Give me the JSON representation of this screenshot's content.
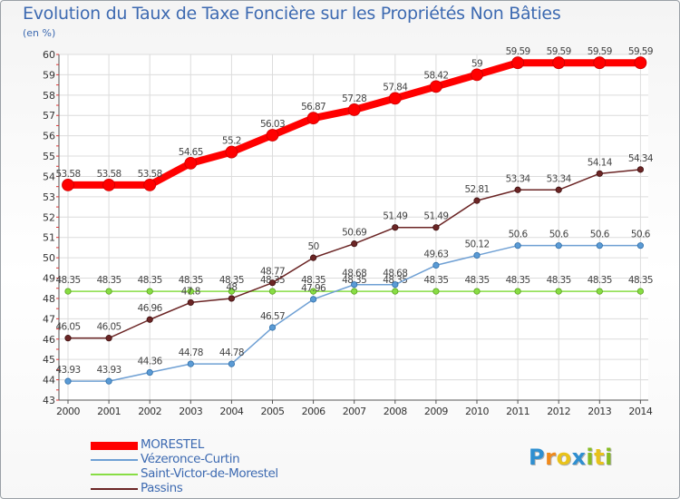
{
  "chart_data": {
    "type": "line",
    "title": "Evolution du Taux de Taxe Foncière sur les Propriétés Non Bâties",
    "ylabel": "(en %)",
    "xlabel": "",
    "ylim": [
      43,
      60
    ],
    "yticks": [
      43,
      44,
      45,
      46,
      47,
      48,
      49,
      50,
      51,
      52,
      53,
      54,
      55,
      56,
      57,
      58,
      59,
      60
    ],
    "categories": [
      "2000",
      "2001",
      "2002",
      "2003",
      "2004",
      "2005",
      "2006",
      "2007",
      "2008",
      "2009",
      "2010",
      "2011",
      "2012",
      "2013",
      "2014"
    ],
    "series": [
      {
        "name": "MORESTEL",
        "color": "#ff0000",
        "values": [
          53.58,
          53.58,
          53.58,
          54.65,
          55.2,
          56.03,
          56.87,
          57.28,
          57.84,
          58.42,
          59,
          59.59,
          59.59,
          59.59,
          59.59
        ],
        "labels": [
          "53.58",
          "53.58",
          "53.58",
          "54.65",
          "55.2",
          "56.03",
          "56.87",
          "57.28",
          "57.84",
          "58.42",
          "59",
          "59.59",
          "59.59",
          "59.59",
          "59.59"
        ]
      },
      {
        "name": "Vézeronce-Curtin",
        "color": "#6fa0d4",
        "values": [
          43.93,
          43.93,
          44.36,
          44.78,
          44.78,
          46.57,
          47.96,
          48.68,
          48.68,
          49.63,
          50.12,
          50.6,
          50.6,
          50.6,
          50.6
        ],
        "labels": [
          "43.93",
          "43.93",
          "44.36",
          "44.78",
          "44.78",
          "46.57",
          "47.96",
          "48.68",
          "48.68",
          "49.63",
          "50.12",
          "50.6",
          "50.6",
          "50.6",
          "50.6"
        ]
      },
      {
        "name": "Saint-Victor-de-Morestel",
        "color": "#88dd44",
        "values": [
          48.35,
          48.35,
          48.35,
          48.35,
          48.35,
          48.35,
          48.35,
          48.35,
          48.35,
          48.35,
          48.35,
          48.35,
          48.35,
          48.35,
          48.35
        ],
        "labels": [
          "48.35",
          "48.35",
          "48.35",
          "48.35",
          "48.35",
          "48.35",
          "48.35",
          "48.35",
          "48.35",
          "48.35",
          "48.35",
          "48.35",
          "48.35",
          "48.35",
          "48.35"
        ]
      },
      {
        "name": "Passins",
        "color": "#6b2525",
        "values": [
          46.05,
          46.05,
          46.96,
          47.8,
          48,
          48.77,
          50,
          50.69,
          51.49,
          51.49,
          52.81,
          53.34,
          53.34,
          54.14,
          54.34
        ],
        "labels": [
          "46.05",
          "46.05",
          "46.96",
          "47.8",
          "48",
          "48.77",
          "50",
          "50.69",
          "51.49",
          "51.49",
          "52.81",
          "53.34",
          "53.34",
          "54.14",
          "54.34"
        ]
      }
    ]
  },
  "brand": {
    "letters": [
      "P",
      "r",
      "o",
      "x",
      "i",
      "t",
      "i"
    ],
    "colors": [
      "#2f8fd0",
      "#f08a1c",
      "#e8c21a",
      "#2f8fd0",
      "#88bb22",
      "#e8c21a",
      "#88bb22"
    ]
  }
}
